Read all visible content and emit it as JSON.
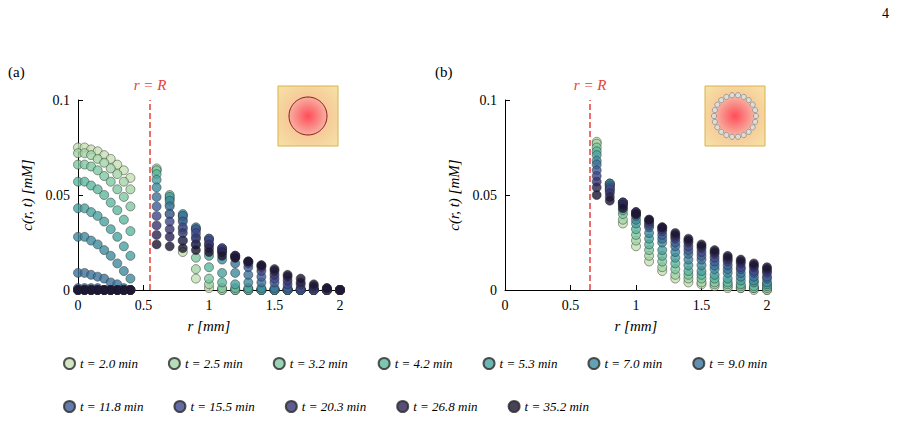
{
  "page": "4",
  "chart_data": [
    {
      "type": "scatter",
      "panel_label": "(a)",
      "annotation": "r = R",
      "r_line": 0.55,
      "xlabel": "r [mm]",
      "ylabel": "c(r, t) [mM]",
      "xlim": [
        0,
        2
      ],
      "ylim": [
        0,
        0.1
      ],
      "xticks": [
        0,
        0.5,
        1,
        1.5,
        2
      ],
      "yticks": [
        0,
        0.05,
        0.1
      ],
      "grid": false,
      "legend": "bottom",
      "marker": "circle",
      "x": [
        0,
        0.05,
        0.1,
        0.15,
        0.2,
        0.25,
        0.3,
        0.35,
        0.4,
        0.6,
        0.7,
        0.8,
        0.9,
        1,
        1.1,
        1.2,
        1.3,
        1.4,
        1.5,
        1.6,
        1.7,
        1.8,
        1.9,
        2
      ],
      "series": [
        {
          "name": "t = 2.0 min",
          "color": "#c5e0b3",
          "values": [
            0.075,
            0.075,
            0.074,
            0.073,
            0.071,
            0.069,
            0.066,
            0.063,
            0.059,
            0.063,
            0.04,
            0.02,
            0.006,
            0.001,
            0,
            0,
            0,
            0,
            0,
            0,
            0,
            0,
            0,
            0
          ]
        },
        {
          "name": "t = 2.5 min",
          "color": "#a3d6a6",
          "values": [
            0.072,
            0.072,
            0.071,
            0.069,
            0.067,
            0.064,
            0.061,
            0.057,
            0.053,
            0.064,
            0.045,
            0.026,
            0.011,
            0.003,
            0,
            0,
            0,
            0,
            0,
            0,
            0,
            0,
            0,
            0
          ]
        },
        {
          "name": "t = 3.2 min",
          "color": "#7ec8a0",
          "values": [
            0.066,
            0.066,
            0.065,
            0.063,
            0.06,
            0.057,
            0.053,
            0.049,
            0.044,
            0.063,
            0.048,
            0.032,
            0.017,
            0.006,
            0.001,
            0,
            0,
            0,
            0,
            0,
            0,
            0,
            0,
            0
          ]
        },
        {
          "name": "t = 4.2 min",
          "color": "#5cb89f",
          "values": [
            0.057,
            0.057,
            0.055,
            0.053,
            0.05,
            0.046,
            0.042,
            0.037,
            0.031,
            0.061,
            0.05,
            0.037,
            0.024,
            0.012,
            0.004,
            0.001,
            0,
            0,
            0,
            0,
            0,
            0,
            0,
            0
          ]
        },
        {
          "name": "t = 5.3 min",
          "color": "#48a2a0",
          "values": [
            0.043,
            0.043,
            0.041,
            0.039,
            0.036,
            0.032,
            0.028,
            0.023,
            0.018,
            0.058,
            0.049,
            0.039,
            0.028,
            0.018,
            0.009,
            0.003,
            0.001,
            0,
            0,
            0,
            0,
            0,
            0,
            0
          ]
        },
        {
          "name": "t = 7.0 min",
          "color": "#3d8b9f",
          "values": [
            0.028,
            0.028,
            0.026,
            0.024,
            0.021,
            0.018,
            0.014,
            0.01,
            0.006,
            0.054,
            0.047,
            0.04,
            0.032,
            0.024,
            0.016,
            0.009,
            0.004,
            0.001,
            0,
            0,
            0,
            0,
            0,
            0
          ]
        },
        {
          "name": "t = 9.0 min",
          "color": "#3b739c",
          "values": [
            0.009,
            0.009,
            0.008,
            0.007,
            0.006,
            0.004,
            0.003,
            0.001,
            0,
            0.049,
            0.044,
            0.039,
            0.033,
            0.027,
            0.02,
            0.014,
            0.008,
            0.004,
            0.001,
            0,
            0,
            0,
            0,
            0
          ]
        },
        {
          "name": "t = 11.8 min",
          "color": "#3c5b96",
          "values": [
            0.001,
            0.001,
            0.001,
            0.001,
            0,
            0,
            0,
            0,
            0,
            0.044,
            0.04,
            0.036,
            0.032,
            0.027,
            0.022,
            0.017,
            0.012,
            0.007,
            0.004,
            0.001,
            0,
            0,
            0,
            0
          ]
        },
        {
          "name": "t = 15.5 min",
          "color": "#3d4689",
          "values": [
            0,
            0,
            0,
            0,
            0,
            0,
            0,
            0,
            0,
            0.039,
            0.036,
            0.033,
            0.03,
            0.026,
            0.022,
            0.018,
            0.014,
            0.01,
            0.006,
            0.003,
            0.001,
            0,
            0,
            0
          ]
        },
        {
          "name": "t = 20.3 min",
          "color": "#363472",
          "values": [
            0,
            0,
            0,
            0,
            0,
            0,
            0,
            0,
            0,
            0.034,
            0.032,
            0.03,
            0.027,
            0.024,
            0.021,
            0.018,
            0.015,
            0.012,
            0.008,
            0.005,
            0.003,
            0.001,
            0,
            0
          ]
        },
        {
          "name": "t = 26.8 min",
          "color": "#2a2354",
          "values": [
            0,
            0,
            0,
            0,
            0,
            0,
            0,
            0,
            0,
            0.029,
            0.028,
            0.026,
            0.024,
            0.022,
            0.02,
            0.018,
            0.015,
            0.013,
            0.01,
            0.007,
            0.004,
            0.002,
            0.001,
            0
          ]
        },
        {
          "name": "t = 35.2 min",
          "color": "#1a1430",
          "values": [
            0,
            0,
            0,
            0,
            0,
            0,
            0,
            0,
            0,
            0.024,
            0.023,
            0.022,
            0.021,
            0.02,
            0.018,
            0.017,
            0.015,
            0.013,
            0.011,
            0.008,
            0.006,
            0.003,
            0.001,
            0
          ]
        }
      ]
    },
    {
      "type": "scatter",
      "panel_label": "(b)",
      "annotation": "r = R",
      "r_line": 0.65,
      "xlabel": "r [mm]",
      "ylabel": "c(r, t) [mM]",
      "xlim": [
        0,
        2
      ],
      "ylim": [
        0,
        0.1
      ],
      "xticks": [
        0,
        0.5,
        1,
        1.5,
        2
      ],
      "yticks": [
        0,
        0.05,
        0.1
      ],
      "grid": false,
      "marker": "circle",
      "x": [
        0.7,
        0.8,
        0.9,
        1,
        1.1,
        1.2,
        1.3,
        1.4,
        1.5,
        1.6,
        1.7,
        1.8,
        1.9,
        2
      ],
      "series": [
        {
          "name": "t = 2.0 min",
          "color": "#c5e0b3",
          "values": [
            0.078,
            0.052,
            0.035,
            0.023,
            0.015,
            0.01,
            0.006,
            0.004,
            0.003,
            0.002,
            0.001,
            0.001,
            0,
            0
          ]
        },
        {
          "name": "t = 2.5 min",
          "color": "#a3d6a6",
          "values": [
            0.077,
            0.053,
            0.037,
            0.026,
            0.018,
            0.012,
            0.008,
            0.006,
            0.004,
            0.003,
            0.002,
            0.001,
            0.001,
            0
          ]
        },
        {
          "name": "t = 3.2 min",
          "color": "#7ec8a0",
          "values": [
            0.075,
            0.055,
            0.04,
            0.029,
            0.021,
            0.015,
            0.011,
            0.008,
            0.006,
            0.004,
            0.003,
            0.002,
            0.001,
            0.001
          ]
        },
        {
          "name": "t = 4.2 min",
          "color": "#5cb89f",
          "values": [
            0.073,
            0.056,
            0.042,
            0.032,
            0.024,
            0.018,
            0.014,
            0.01,
            0.008,
            0.006,
            0.004,
            0.003,
            0.002,
            0.002
          ]
        },
        {
          "name": "t = 5.3 min",
          "color": "#48a2a0",
          "values": [
            0.071,
            0.056,
            0.044,
            0.035,
            0.027,
            0.021,
            0.017,
            0.013,
            0.01,
            0.008,
            0.006,
            0.005,
            0.004,
            0.003
          ]
        },
        {
          "name": "t = 7.0 min",
          "color": "#3d8b9f",
          "values": [
            0.068,
            0.056,
            0.045,
            0.037,
            0.03,
            0.025,
            0.02,
            0.016,
            0.013,
            0.011,
            0.009,
            0.007,
            0.005,
            0.004
          ]
        },
        {
          "name": "t = 9.0 min",
          "color": "#3b739c",
          "values": [
            0.066,
            0.055,
            0.046,
            0.039,
            0.033,
            0.027,
            0.023,
            0.019,
            0.016,
            0.013,
            0.011,
            0.009,
            0.007,
            0.006
          ]
        },
        {
          "name": "t = 11.8 min",
          "color": "#3c5b96",
          "values": [
            0.063,
            0.054,
            0.046,
            0.04,
            0.034,
            0.029,
            0.025,
            0.021,
            0.018,
            0.015,
            0.013,
            0.011,
            0.009,
            0.007
          ]
        },
        {
          "name": "t = 15.5 min",
          "color": "#3d4689",
          "values": [
            0.06,
            0.053,
            0.046,
            0.04,
            0.035,
            0.031,
            0.027,
            0.023,
            0.02,
            0.017,
            0.015,
            0.012,
            0.01,
            0.009
          ]
        },
        {
          "name": "t = 20.3 min",
          "color": "#363472",
          "values": [
            0.057,
            0.051,
            0.046,
            0.041,
            0.036,
            0.032,
            0.028,
            0.025,
            0.022,
            0.019,
            0.016,
            0.014,
            0.012,
            0.01
          ]
        },
        {
          "name": "t = 26.8 min",
          "color": "#2a2354",
          "values": [
            0.054,
            0.049,
            0.045,
            0.041,
            0.037,
            0.033,
            0.029,
            0.026,
            0.023,
            0.02,
            0.017,
            0.015,
            0.013,
            0.011
          ]
        },
        {
          "name": "t = 35.2 min",
          "color": "#1a1430",
          "values": [
            0.05,
            0.047,
            0.043,
            0.04,
            0.037,
            0.033,
            0.03,
            0.027,
            0.024,
            0.021,
            0.018,
            0.016,
            0.014,
            0.012
          ]
        }
      ]
    }
  ]
}
